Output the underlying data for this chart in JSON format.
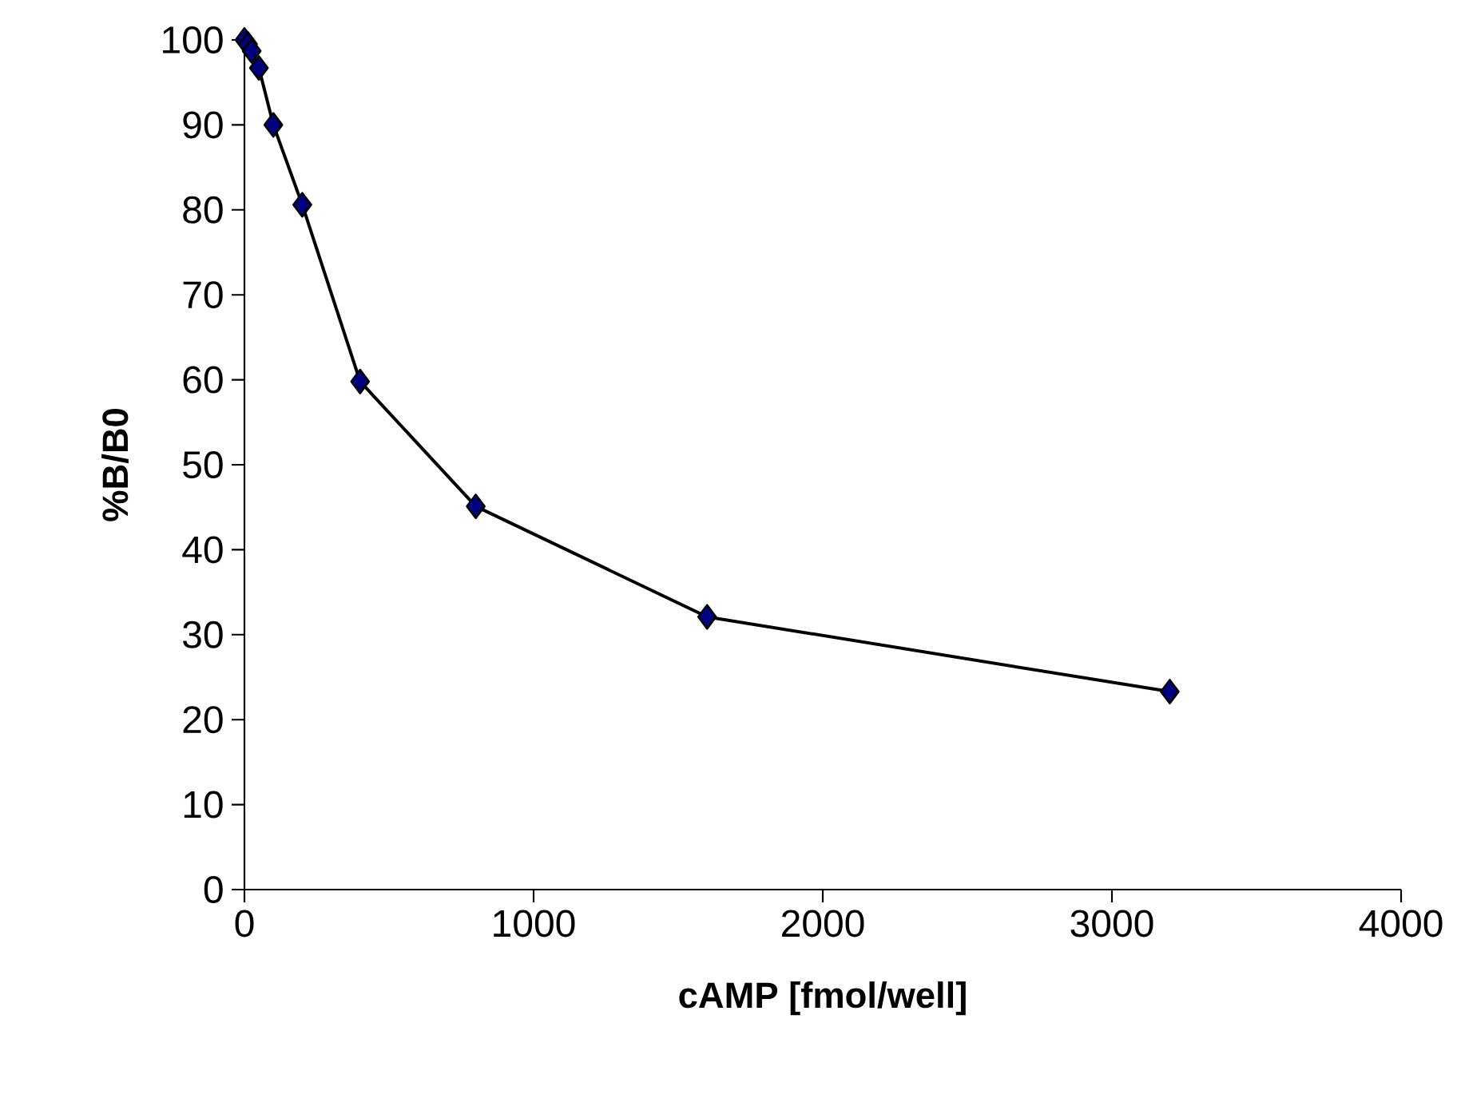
{
  "chart_data": {
    "type": "line",
    "xlabel": "cAMP [fmol/well]",
    "ylabel": "%B/B0",
    "x": [
      0,
      12.5,
      25,
      50,
      100,
      200,
      400,
      800,
      1600,
      3200
    ],
    "series": [
      {
        "color": "#000080",
        "values": [
          100,
          99.5,
          98.7,
          96.7,
          90,
          80.6,
          59.8,
          45.1,
          32.1,
          23.3
        ]
      }
    ],
    "xlim": [
      0,
      4000
    ],
    "ylim": [
      0,
      100
    ],
    "xticks": [
      0,
      1000,
      2000,
      3000,
      4000
    ],
    "yticks": [
      0,
      10,
      20,
      30,
      40,
      50,
      60,
      70,
      80,
      90,
      100
    ],
    "marker": "diamond",
    "line_style": "solid"
  }
}
